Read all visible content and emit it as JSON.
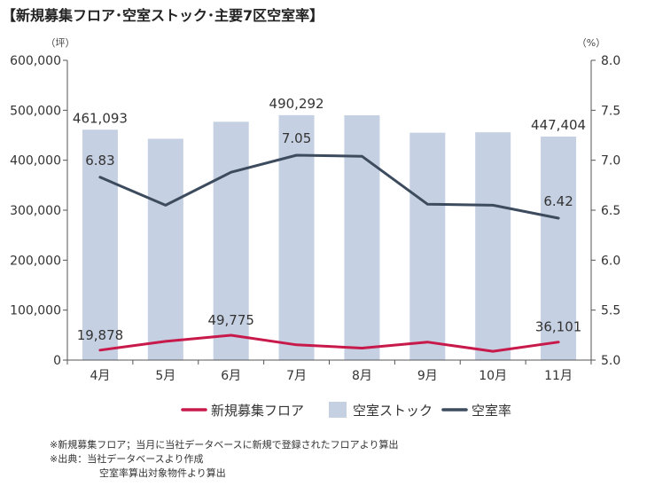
{
  "title": "【新規募集フロア･空室ストック･主要7区空室率】",
  "chart_data": {
    "type": "bar+line",
    "title": "【新規募集フロア･空室ストック･主要7区空室率】",
    "categories": [
      "4月",
      "5月",
      "6月",
      "7月",
      "8月",
      "9月",
      "10月",
      "11月"
    ],
    "left_axis": {
      "unit": "（坪）",
      "ylim": [
        0,
        600000
      ],
      "ticks": [
        "0",
        "100,000",
        "200,000",
        "300,000",
        "400,000",
        "500,000",
        "600,000"
      ]
    },
    "right_axis": {
      "unit": "（%）",
      "ylim": [
        5.0,
        8.0
      ],
      "ticks": [
        "5.0",
        "5.5",
        "6.0",
        "6.5",
        "7.0",
        "7.5",
        "8.0"
      ]
    },
    "series": [
      {
        "name": "新規募集フロア",
        "type": "line",
        "axis": "left",
        "color": "#c8194b",
        "values": [
          19878,
          37500,
          49775,
          30500,
          24000,
          36000,
          17500,
          36101
        ]
      },
      {
        "name": "空室ストック",
        "type": "bar",
        "axis": "left",
        "color": "#c5d0e2",
        "values": [
          461093,
          443000,
          477000,
          490292,
          490000,
          455000,
          456000,
          447404
        ]
      },
      {
        "name": "空室率",
        "type": "line",
        "axis": "right",
        "color": "#3d4b5e",
        "values": [
          6.83,
          6.55,
          6.88,
          7.05,
          7.04,
          6.56,
          6.55,
          6.42
        ]
      }
    ],
    "data_labels": [
      {
        "series": "空室ストック",
        "index": 0,
        "text": "461,093"
      },
      {
        "series": "空室ストック",
        "index": 3,
        "text": "490,292"
      },
      {
        "series": "空室ストック",
        "index": 7,
        "text": "447,404"
      },
      {
        "series": "空室率",
        "index": 0,
        "text": "6.83"
      },
      {
        "series": "空室率",
        "index": 3,
        "text": "7.05"
      },
      {
        "series": "空室率",
        "index": 7,
        "text": "6.42"
      },
      {
        "series": "新規募集フロア",
        "index": 0,
        "text": "19,878"
      },
      {
        "series": "新規募集フロア",
        "index": 2,
        "text": "49,775"
      },
      {
        "series": "新規募集フロア",
        "index": 7,
        "text": "36,101"
      }
    ],
    "legend": [
      "新規募集フロア",
      "空室ストック",
      "空室率"
    ],
    "legend_position": "bottom"
  },
  "notes": [
    "※新規募集フロア；当月に当社データベースに新規で登録されたフロアより算出",
    "※出典：当社データベースより作成",
    "空室率算出対象物件より算出"
  ]
}
